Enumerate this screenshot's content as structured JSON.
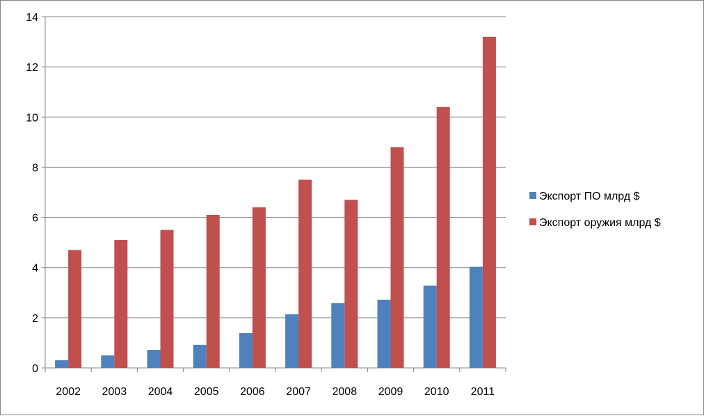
{
  "colors": {
    "series1": "#4F81BD",
    "series2": "#C0504D",
    "grid": "#868686"
  },
  "chart_data": {
    "type": "bar",
    "categories": [
      "2002",
      "2003",
      "2004",
      "2005",
      "2006",
      "2007",
      "2008",
      "2009",
      "2010",
      "2011"
    ],
    "series": [
      {
        "name": "Экспорт ПО млрд $",
        "values": [
          0.31,
          0.5,
          0.72,
          0.92,
          1.39,
          2.14,
          2.58,
          2.72,
          3.28,
          4.03
        ]
      },
      {
        "name": "Экспорт оружия  млрд $",
        "values": [
          4.7,
          5.1,
          5.5,
          6.1,
          6.4,
          7.5,
          6.7,
          8.8,
          10.4,
          13.2
        ]
      }
    ],
    "ylim": [
      0,
      14
    ],
    "yticks": [
      "0",
      "2",
      "4",
      "6",
      "8",
      "10",
      "12",
      "14"
    ],
    "grid": true,
    "legend": "right"
  }
}
